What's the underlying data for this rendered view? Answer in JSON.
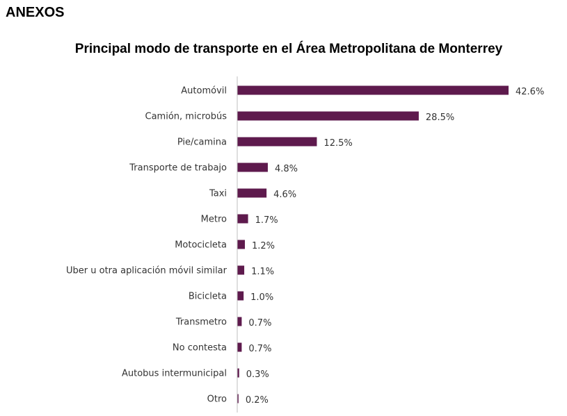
{
  "section_heading": "ANEXOS",
  "chart_data": {
    "type": "bar",
    "orientation": "horizontal",
    "title": "Principal modo de transporte en el Área Metropolitana de Monterrey",
    "categories": [
      "Automóvil",
      "Camión, microbús",
      "Pie/camina",
      "Transporte de trabajo",
      "Taxi",
      "Metro",
      "Motocicleta",
      "Uber u otra aplicación móvil similar",
      "Bicicleta",
      "Transmetro",
      "No contesta",
      "Autobus intermunicipal",
      "Otro"
    ],
    "values": [
      42.6,
      28.5,
      12.5,
      4.8,
      4.6,
      1.7,
      1.2,
      1.1,
      1.0,
      0.7,
      0.7,
      0.3,
      0.2
    ],
    "data_labels": [
      "42.6%",
      "28.5%",
      "12.5%",
      "4.8%",
      "4.6%",
      "1.7%",
      "1.2%",
      "1.1%",
      "1.0%",
      "0.7%",
      "0.7%",
      "0.3%",
      "0.2%"
    ],
    "unit": "%",
    "xlim": [
      0,
      42.6
    ],
    "grid": false,
    "legend": "none",
    "bar_color": "#5e1a4d",
    "axis_color": "#bfbfbf"
  }
}
